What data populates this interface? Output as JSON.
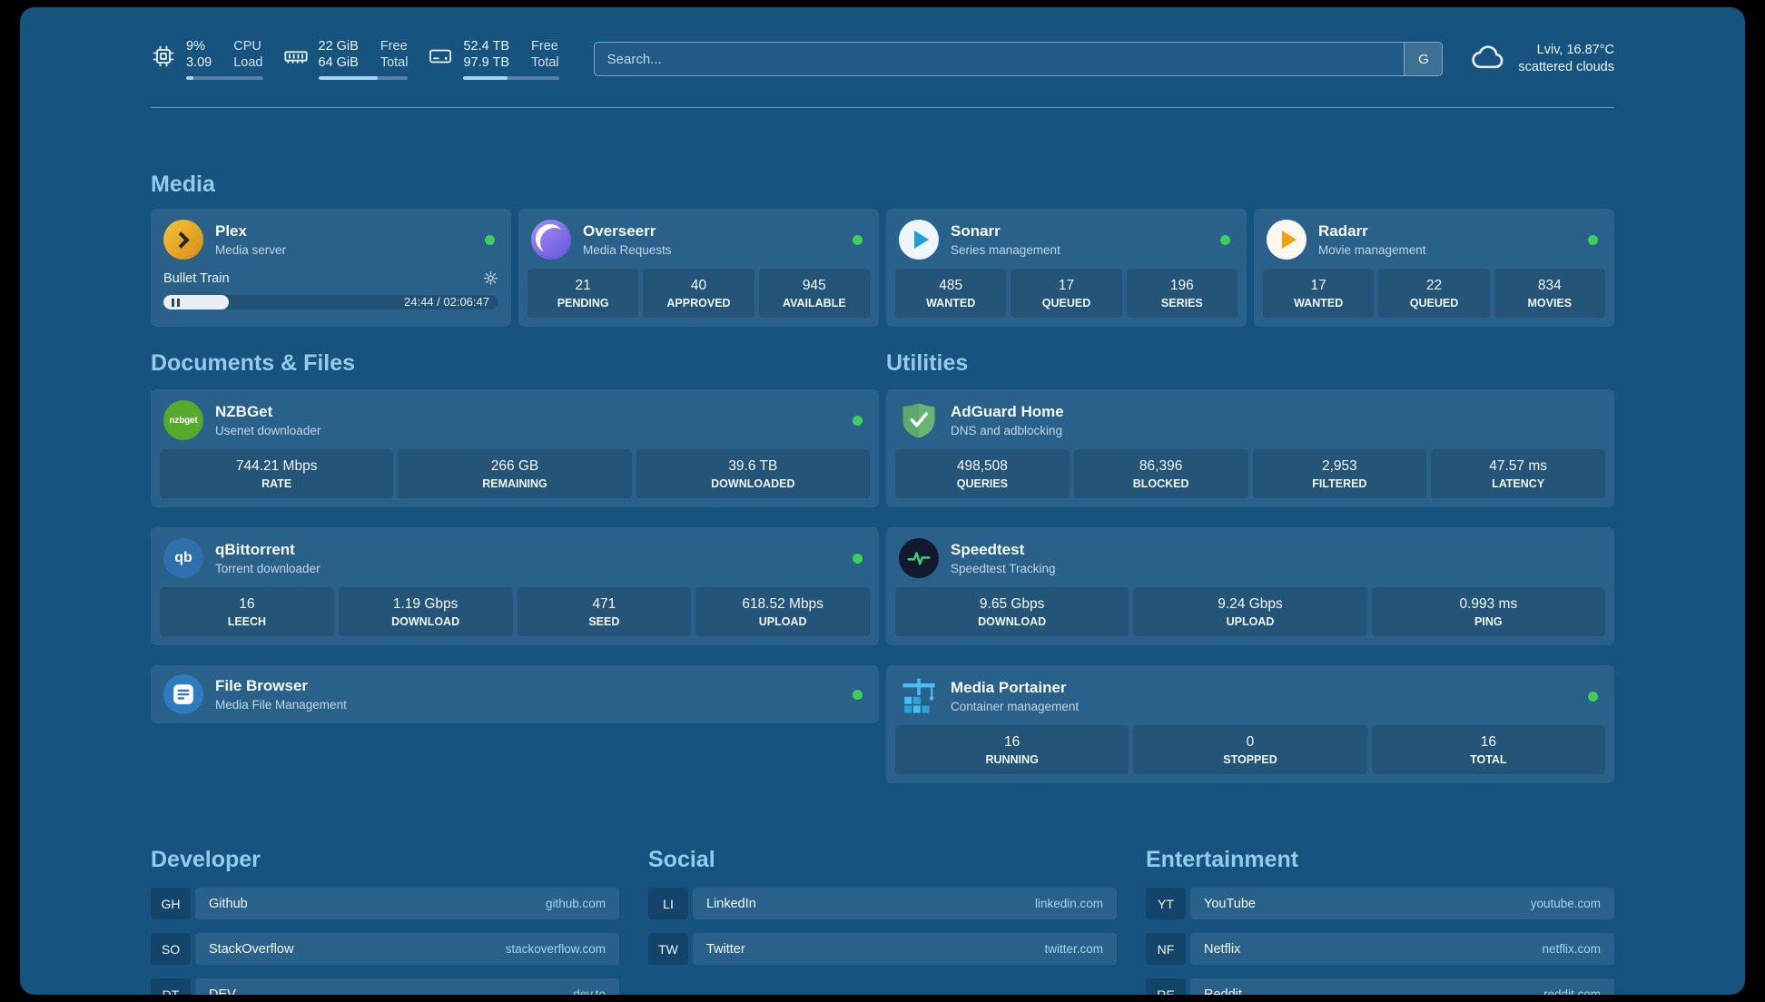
{
  "colors": {
    "background": "#16537f",
    "card": "rgba(255,255,255,0.085)",
    "accent_heading": "#93cbec",
    "status_online": "#3ecf5a",
    "link": "#9fd4f0"
  },
  "topbar": {
    "cpu": {
      "percent": "9%",
      "load": "3.09",
      "label_top": "CPU",
      "label_bottom": "Load",
      "progress": 9
    },
    "memory": {
      "free": "22 GiB",
      "total": "64 GiB",
      "label_top": "Free",
      "label_bottom": "Total",
      "progress": 66
    },
    "disk": {
      "free": "52.4 TB",
      "total": "97.9 TB",
      "label_top": "Free",
      "label_bottom": "Total",
      "progress": 46
    },
    "search": {
      "placeholder": "Search...",
      "button_label": "G"
    },
    "weather": {
      "location": "Lviv, 16.87°C",
      "condition": "scattered clouds"
    }
  },
  "media": {
    "title": "Media",
    "plex": {
      "name": "Plex",
      "subtitle": "Media server",
      "now_playing": "Bullet Train",
      "time": "24:44 / 02:06:47",
      "progress": 19.5
    },
    "overseerr": {
      "name": "Overseerr",
      "subtitle": "Media Requests",
      "stats": [
        {
          "value": "21",
          "label": "PENDING"
        },
        {
          "value": "40",
          "label": "APPROVED"
        },
        {
          "value": "945",
          "label": "AVAILABLE"
        }
      ]
    },
    "sonarr": {
      "name": "Sonarr",
      "subtitle": "Series management",
      "stats": [
        {
          "value": "485",
          "label": "WANTED"
        },
        {
          "value": "17",
          "label": "QUEUED"
        },
        {
          "value": "196",
          "label": "SERIES"
        }
      ]
    },
    "radarr": {
      "name": "Radarr",
      "subtitle": "Movie management",
      "stats": [
        {
          "value": "17",
          "label": "WANTED"
        },
        {
          "value": "22",
          "label": "QUEUED"
        },
        {
          "value": "834",
          "label": "MOVIES"
        }
      ]
    }
  },
  "documents": {
    "title": "Documents & Files",
    "nzbget": {
      "name": "NZBGet",
      "subtitle": "Usenet downloader",
      "stats": [
        {
          "value": "744.21 Mbps",
          "label": "RATE"
        },
        {
          "value": "266 GB",
          "label": "REMAINING"
        },
        {
          "value": "39.6 TB",
          "label": "DOWNLOADED"
        }
      ]
    },
    "qbittorrent": {
      "name": "qBittorrent",
      "subtitle": "Torrent downloader",
      "stats": [
        {
          "value": "16",
          "label": "LEECH"
        },
        {
          "value": "1.19 Gbps",
          "label": "DOWNLOAD"
        },
        {
          "value": "471",
          "label": "SEED"
        },
        {
          "value": "618.52 Mbps",
          "label": "UPLOAD"
        }
      ]
    },
    "filebrowser": {
      "name": "File Browser",
      "subtitle": "Media File Management"
    }
  },
  "utilities": {
    "title": "Utilities",
    "adguard": {
      "name": "AdGuard Home",
      "subtitle": "DNS and adblocking",
      "stats": [
        {
          "value": "498,508",
          "label": "QUERIES"
        },
        {
          "value": "86,396",
          "label": "BLOCKED"
        },
        {
          "value": "2,953",
          "label": "FILTERED"
        },
        {
          "value": "47.57 ms",
          "label": "LATENCY"
        }
      ]
    },
    "speedtest": {
      "name": "Speedtest",
      "subtitle": "Speedtest Tracking",
      "stats": [
        {
          "value": "9.65 Gbps",
          "label": "DOWNLOAD"
        },
        {
          "value": "9.24 Gbps",
          "label": "UPLOAD"
        },
        {
          "value": "0.993 ms",
          "label": "PING"
        }
      ]
    },
    "portainer": {
      "name": "Media Portainer",
      "subtitle": "Container management",
      "stats": [
        {
          "value": "16",
          "label": "RUNNING"
        },
        {
          "value": "0",
          "label": "STOPPED"
        },
        {
          "value": "16",
          "label": "TOTAL"
        }
      ]
    }
  },
  "bookmarks": [
    {
      "title": "Developer",
      "items": [
        {
          "abbr": "GH",
          "name": "Github",
          "url": "github.com"
        },
        {
          "abbr": "SO",
          "name": "StackOverflow",
          "url": "stackoverflow.com"
        },
        {
          "abbr": "DT",
          "name": "DEV",
          "url": "dev.to"
        }
      ]
    },
    {
      "title": "Social",
      "items": [
        {
          "abbr": "LI",
          "name": "LinkedIn",
          "url": "linkedin.com"
        },
        {
          "abbr": "TW",
          "name": "Twitter",
          "url": "twitter.com"
        }
      ]
    },
    {
      "title": "Entertainment",
      "items": [
        {
          "abbr": "YT",
          "name": "YouTube",
          "url": "youtube.com"
        },
        {
          "abbr": "NF",
          "name": "Netflix",
          "url": "netflix.com"
        },
        {
          "abbr": "RE",
          "name": "Reddit",
          "url": "reddit.com"
        }
      ]
    }
  ]
}
